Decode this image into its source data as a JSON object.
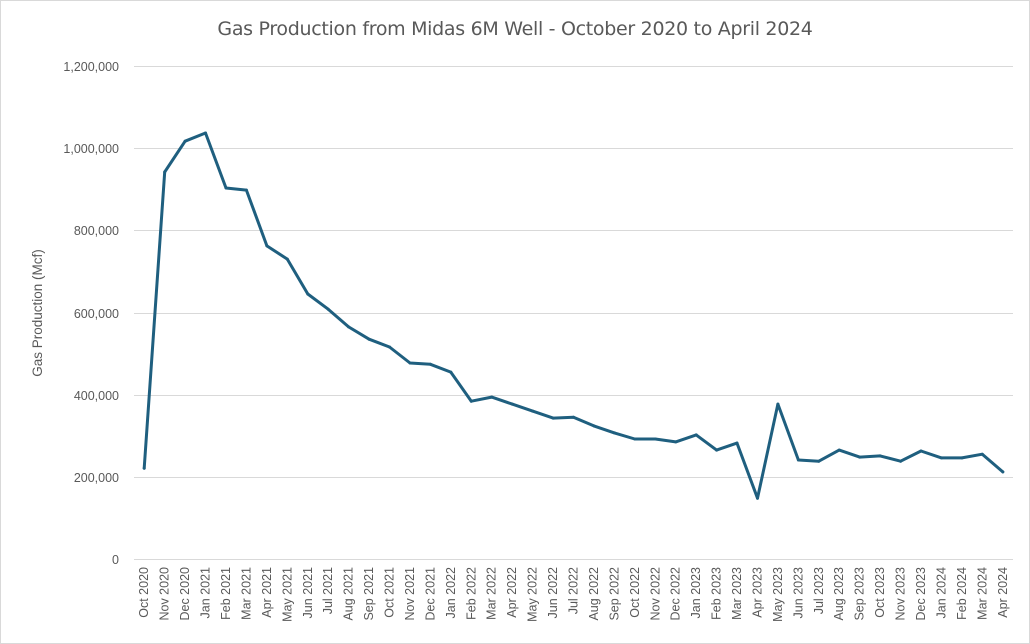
{
  "chart_data": {
    "type": "line",
    "title": "Gas Production from Midas 6M Well - October 2020 to April 2024",
    "xlabel": "",
    "ylabel": "Gas Production (Mcf)",
    "ylim": [
      0,
      1200000
    ],
    "yticks": [
      0,
      200000,
      400000,
      600000,
      800000,
      1000000,
      1200000
    ],
    "ytick_labels": [
      "0",
      "200,000",
      "400,000",
      "600,000",
      "800,000",
      "1,000,000",
      "1,200,000"
    ],
    "grid": true,
    "legend": "none",
    "line_color": "#1f5f7f",
    "categories": [
      "Oct 2020",
      "Nov 2020",
      "Dec 2020",
      "Jan 2021",
      "Feb 2021",
      "Mar 2021",
      "Apr 2021",
      "May 2021",
      "Jun 2021",
      "Jul 2021",
      "Aug 2021",
      "Sep 2021",
      "Oct 2021",
      "Nov 2021",
      "Dec 2021",
      "Jan 2022",
      "Feb 2022",
      "Mar 2022",
      "Apr 2022",
      "May 2022",
      "Jun 2022",
      "Jul 2022",
      "Aug 2022",
      "Sep 2022",
      "Oct 2022",
      "Nov 2022",
      "Dec 2022",
      "Jan 2023",
      "Feb 2023",
      "Mar 2023",
      "Apr 2023",
      "May 2023",
      "Jun 2023",
      "Jul 2023",
      "Aug 2023",
      "Sep 2023",
      "Oct 2023",
      "Nov 2023",
      "Dec 2023",
      "Jan 2024",
      "Feb 2024",
      "Mar 2024",
      "Apr 2024"
    ],
    "series": [
      {
        "name": "Gas Production",
        "values": [
          221000,
          942000,
          1017000,
          1037000,
          903000,
          898000,
          762000,
          730000,
          645000,
          608000,
          565000,
          535000,
          516000,
          477000,
          474000,
          455000,
          384000,
          394000,
          377000,
          360000,
          343000,
          345000,
          324000,
          307000,
          292000,
          292000,
          285000,
          302000,
          265000,
          282000,
          148000,
          377000,
          241000,
          238000,
          265000,
          248000,
          251000,
          238000,
          263000,
          246000,
          246000,
          255000,
          212000
        ]
      }
    ]
  }
}
